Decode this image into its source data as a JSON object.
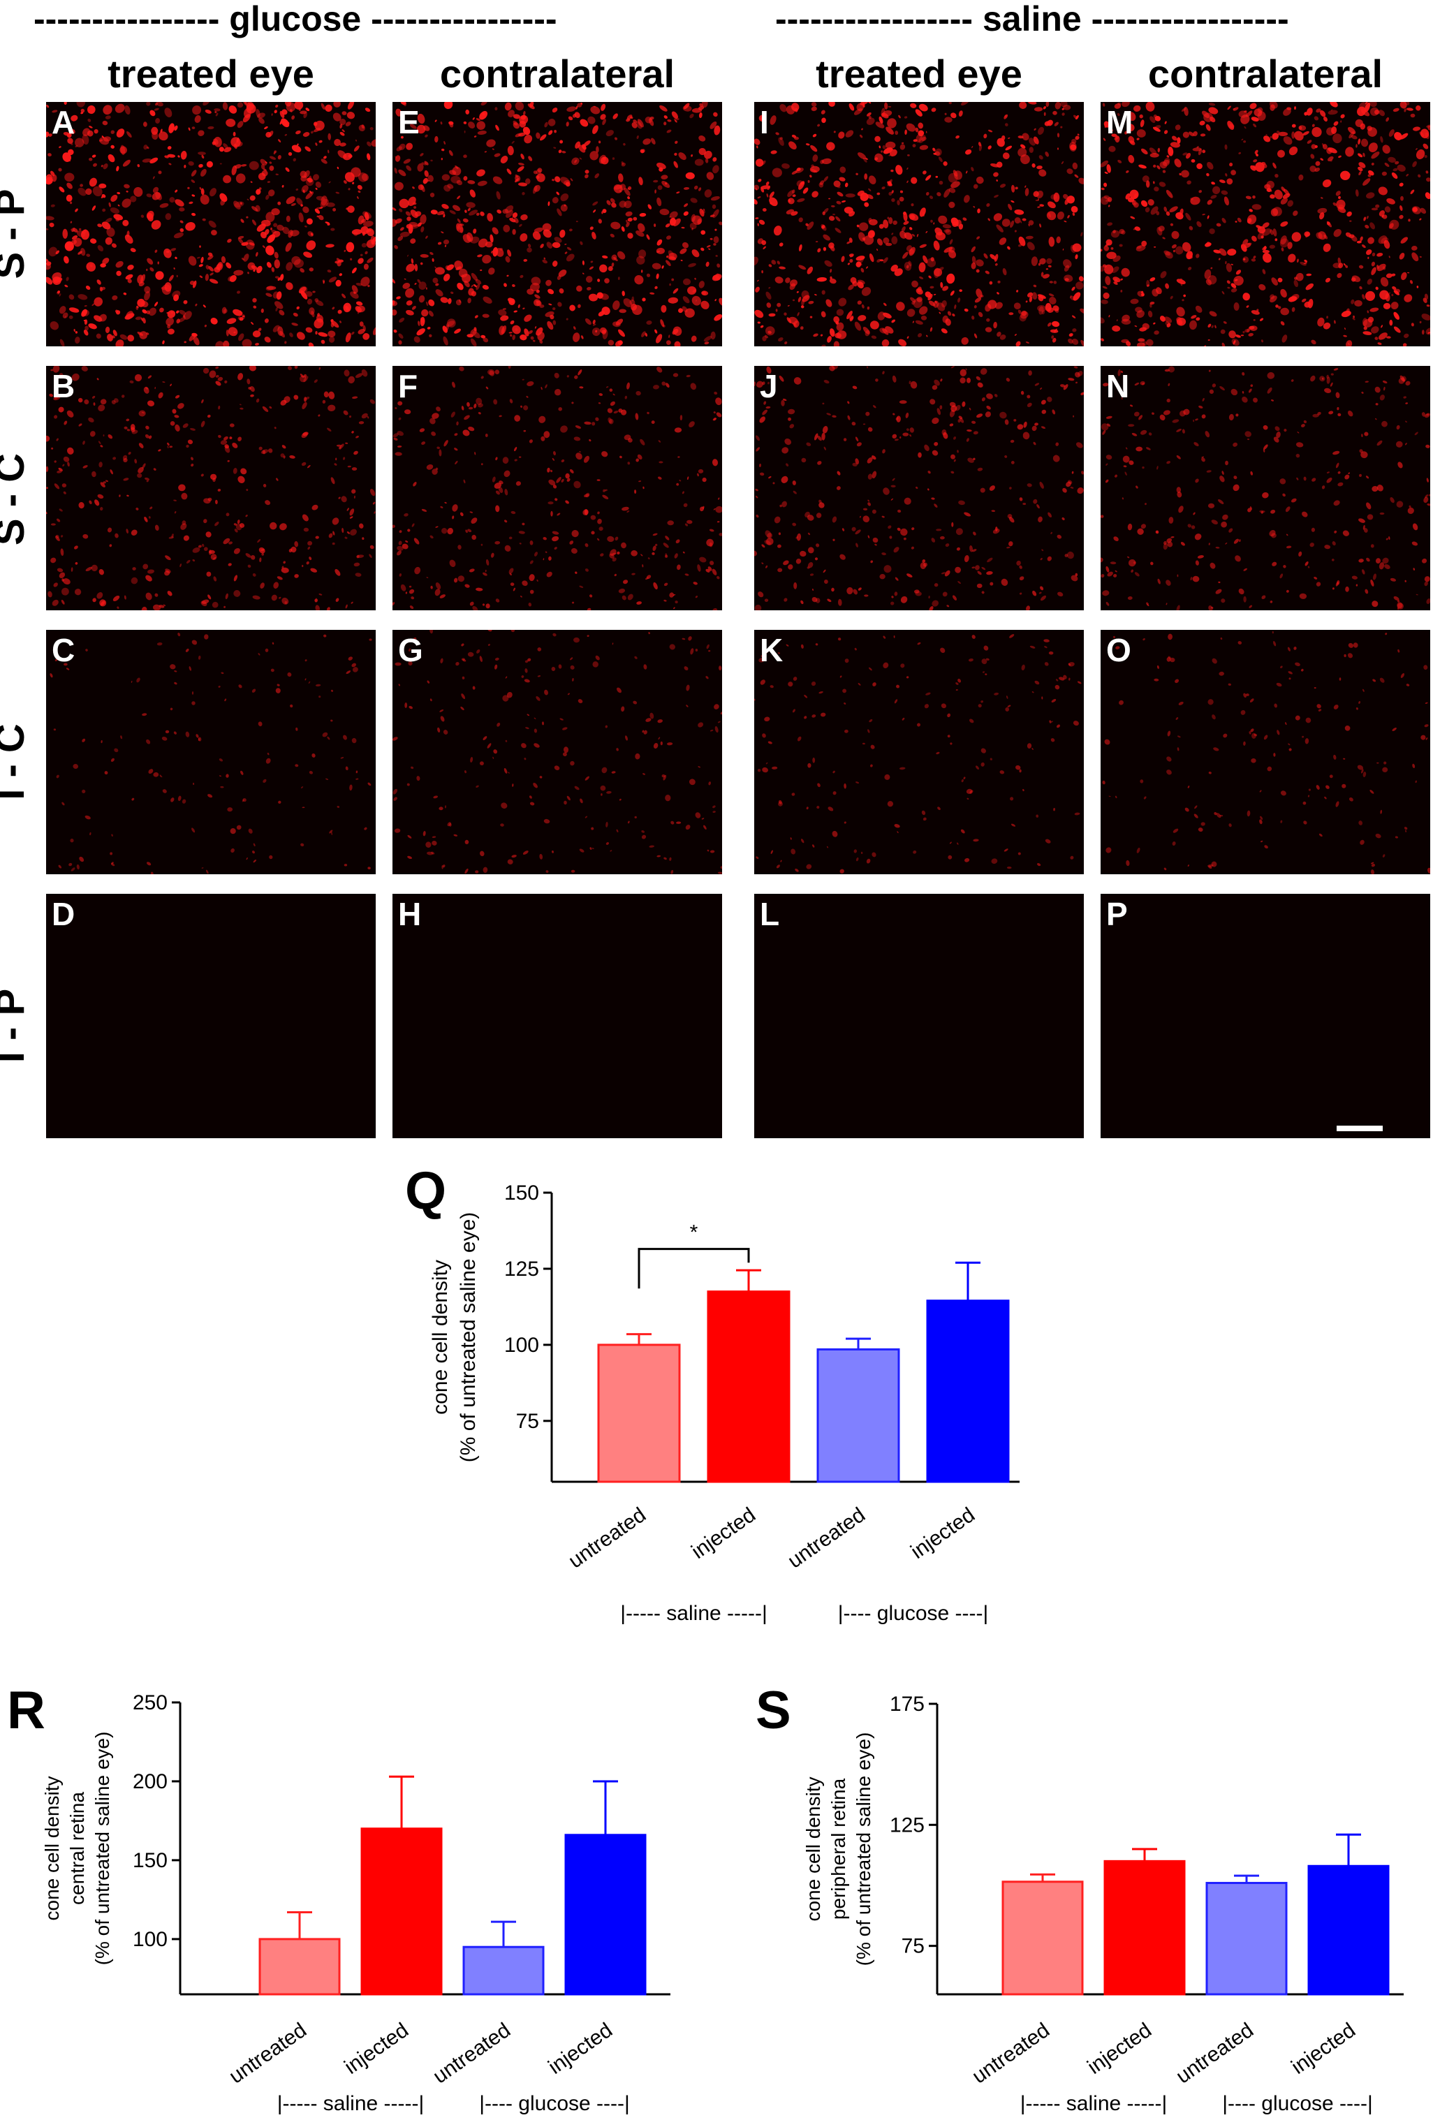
{
  "figure": {
    "group_headers": [
      {
        "id": "glucose",
        "label": "---------------- glucose ----------------"
      },
      {
        "id": "saline",
        "label": "----------------- saline -----------------"
      }
    ],
    "column_headers": [
      "treated eye",
      "contralateral",
      "treated eye",
      "contralateral"
    ],
    "row_headers": [
      "S - P",
      "S - C",
      "I - C",
      "I - P"
    ],
    "panels": [
      {
        "letter": "A",
        "signal": 1.0
      },
      {
        "letter": "E",
        "signal": 0.95
      },
      {
        "letter": "I",
        "signal": 0.95
      },
      {
        "letter": "M",
        "signal": 0.95
      },
      {
        "letter": "B",
        "signal": 0.55
      },
      {
        "letter": "F",
        "signal": 0.5
      },
      {
        "letter": "J",
        "signal": 0.5
      },
      {
        "letter": "N",
        "signal": 0.45
      },
      {
        "letter": "C",
        "signal": 0.2
      },
      {
        "letter": "G",
        "signal": 0.3
      },
      {
        "letter": "K",
        "signal": 0.25
      },
      {
        "letter": "O",
        "signal": 0.22
      },
      {
        "letter": "D",
        "signal": 0.0
      },
      {
        "letter": "H",
        "signal": 0.0
      },
      {
        "letter": "L",
        "signal": 0.0
      },
      {
        "letter": "P",
        "signal": 0.0
      }
    ],
    "colors": {
      "panel_bg": "#0a0000",
      "signal": "#ff1a1a",
      "untreated_saline": "#ff8080",
      "injected_saline": "#ff0000",
      "untreated_glucose": "#8080ff",
      "injected_glucose": "#0000ff"
    }
  },
  "chart_data": [
    {
      "letter": "Q",
      "type": "bar",
      "categories": [
        "untreated",
        "injected",
        "untreated",
        "injected"
      ],
      "values": [
        100,
        117.5,
        98.5,
        114.5
      ],
      "errors": [
        3.5,
        7,
        3.5,
        12.5
      ],
      "colors": [
        "#ff8080",
        "#ff0000",
        "#8080ff",
        "#0000ff"
      ],
      "edge_colors": [
        "#ff2020",
        "#ff0000",
        "#2020ff",
        "#0000ff"
      ],
      "ylabel_lines": [
        "cone cell density",
        "(% of untreated saline eye)"
      ],
      "ylim": [
        55,
        150
      ],
      "yticks": [
        75,
        100,
        125,
        150
      ],
      "group_labels": [
        "|----- saline -----|",
        "|---- glucose ----|"
      ],
      "significance": {
        "label": "*",
        "between": [
          0,
          1
        ]
      }
    },
    {
      "letter": "R",
      "type": "bar",
      "categories": [
        "untreated",
        "injected",
        "untreated",
        "injected"
      ],
      "values": [
        100,
        170,
        95,
        166
      ],
      "errors": [
        17,
        33,
        16,
        34
      ],
      "colors": [
        "#ff8080",
        "#ff0000",
        "#8080ff",
        "#0000ff"
      ],
      "edge_colors": [
        "#ff2020",
        "#ff0000",
        "#2020ff",
        "#0000ff"
      ],
      "ylabel_lines": [
        "cone cell density",
        "central retina",
        "(% of untreated saline eye)"
      ],
      "ylim": [
        65,
        250
      ],
      "yticks": [
        100,
        150,
        200,
        250
      ],
      "group_labels": [
        "|----- saline -----|",
        "|---- glucose ----|"
      ]
    },
    {
      "letter": "S",
      "type": "bar",
      "categories": [
        "untreated",
        "injected",
        "untreated",
        "injected"
      ],
      "values": [
        101.5,
        110,
        101,
        108
      ],
      "errors": [
        3,
        5,
        3,
        13
      ],
      "colors": [
        "#ff8080",
        "#ff0000",
        "#8080ff",
        "#0000ff"
      ],
      "edge_colors": [
        "#ff2020",
        "#ff0000",
        "#2020ff",
        "#0000ff"
      ],
      "ylabel_lines": [
        "cone cell density",
        "peripheral retina",
        "(% of untreated saline eye)"
      ],
      "ylim": [
        55,
        175
      ],
      "yticks": [
        75,
        125,
        175
      ],
      "group_labels": [
        "|----- saline -----|",
        "|---- glucose ----|"
      ]
    }
  ]
}
